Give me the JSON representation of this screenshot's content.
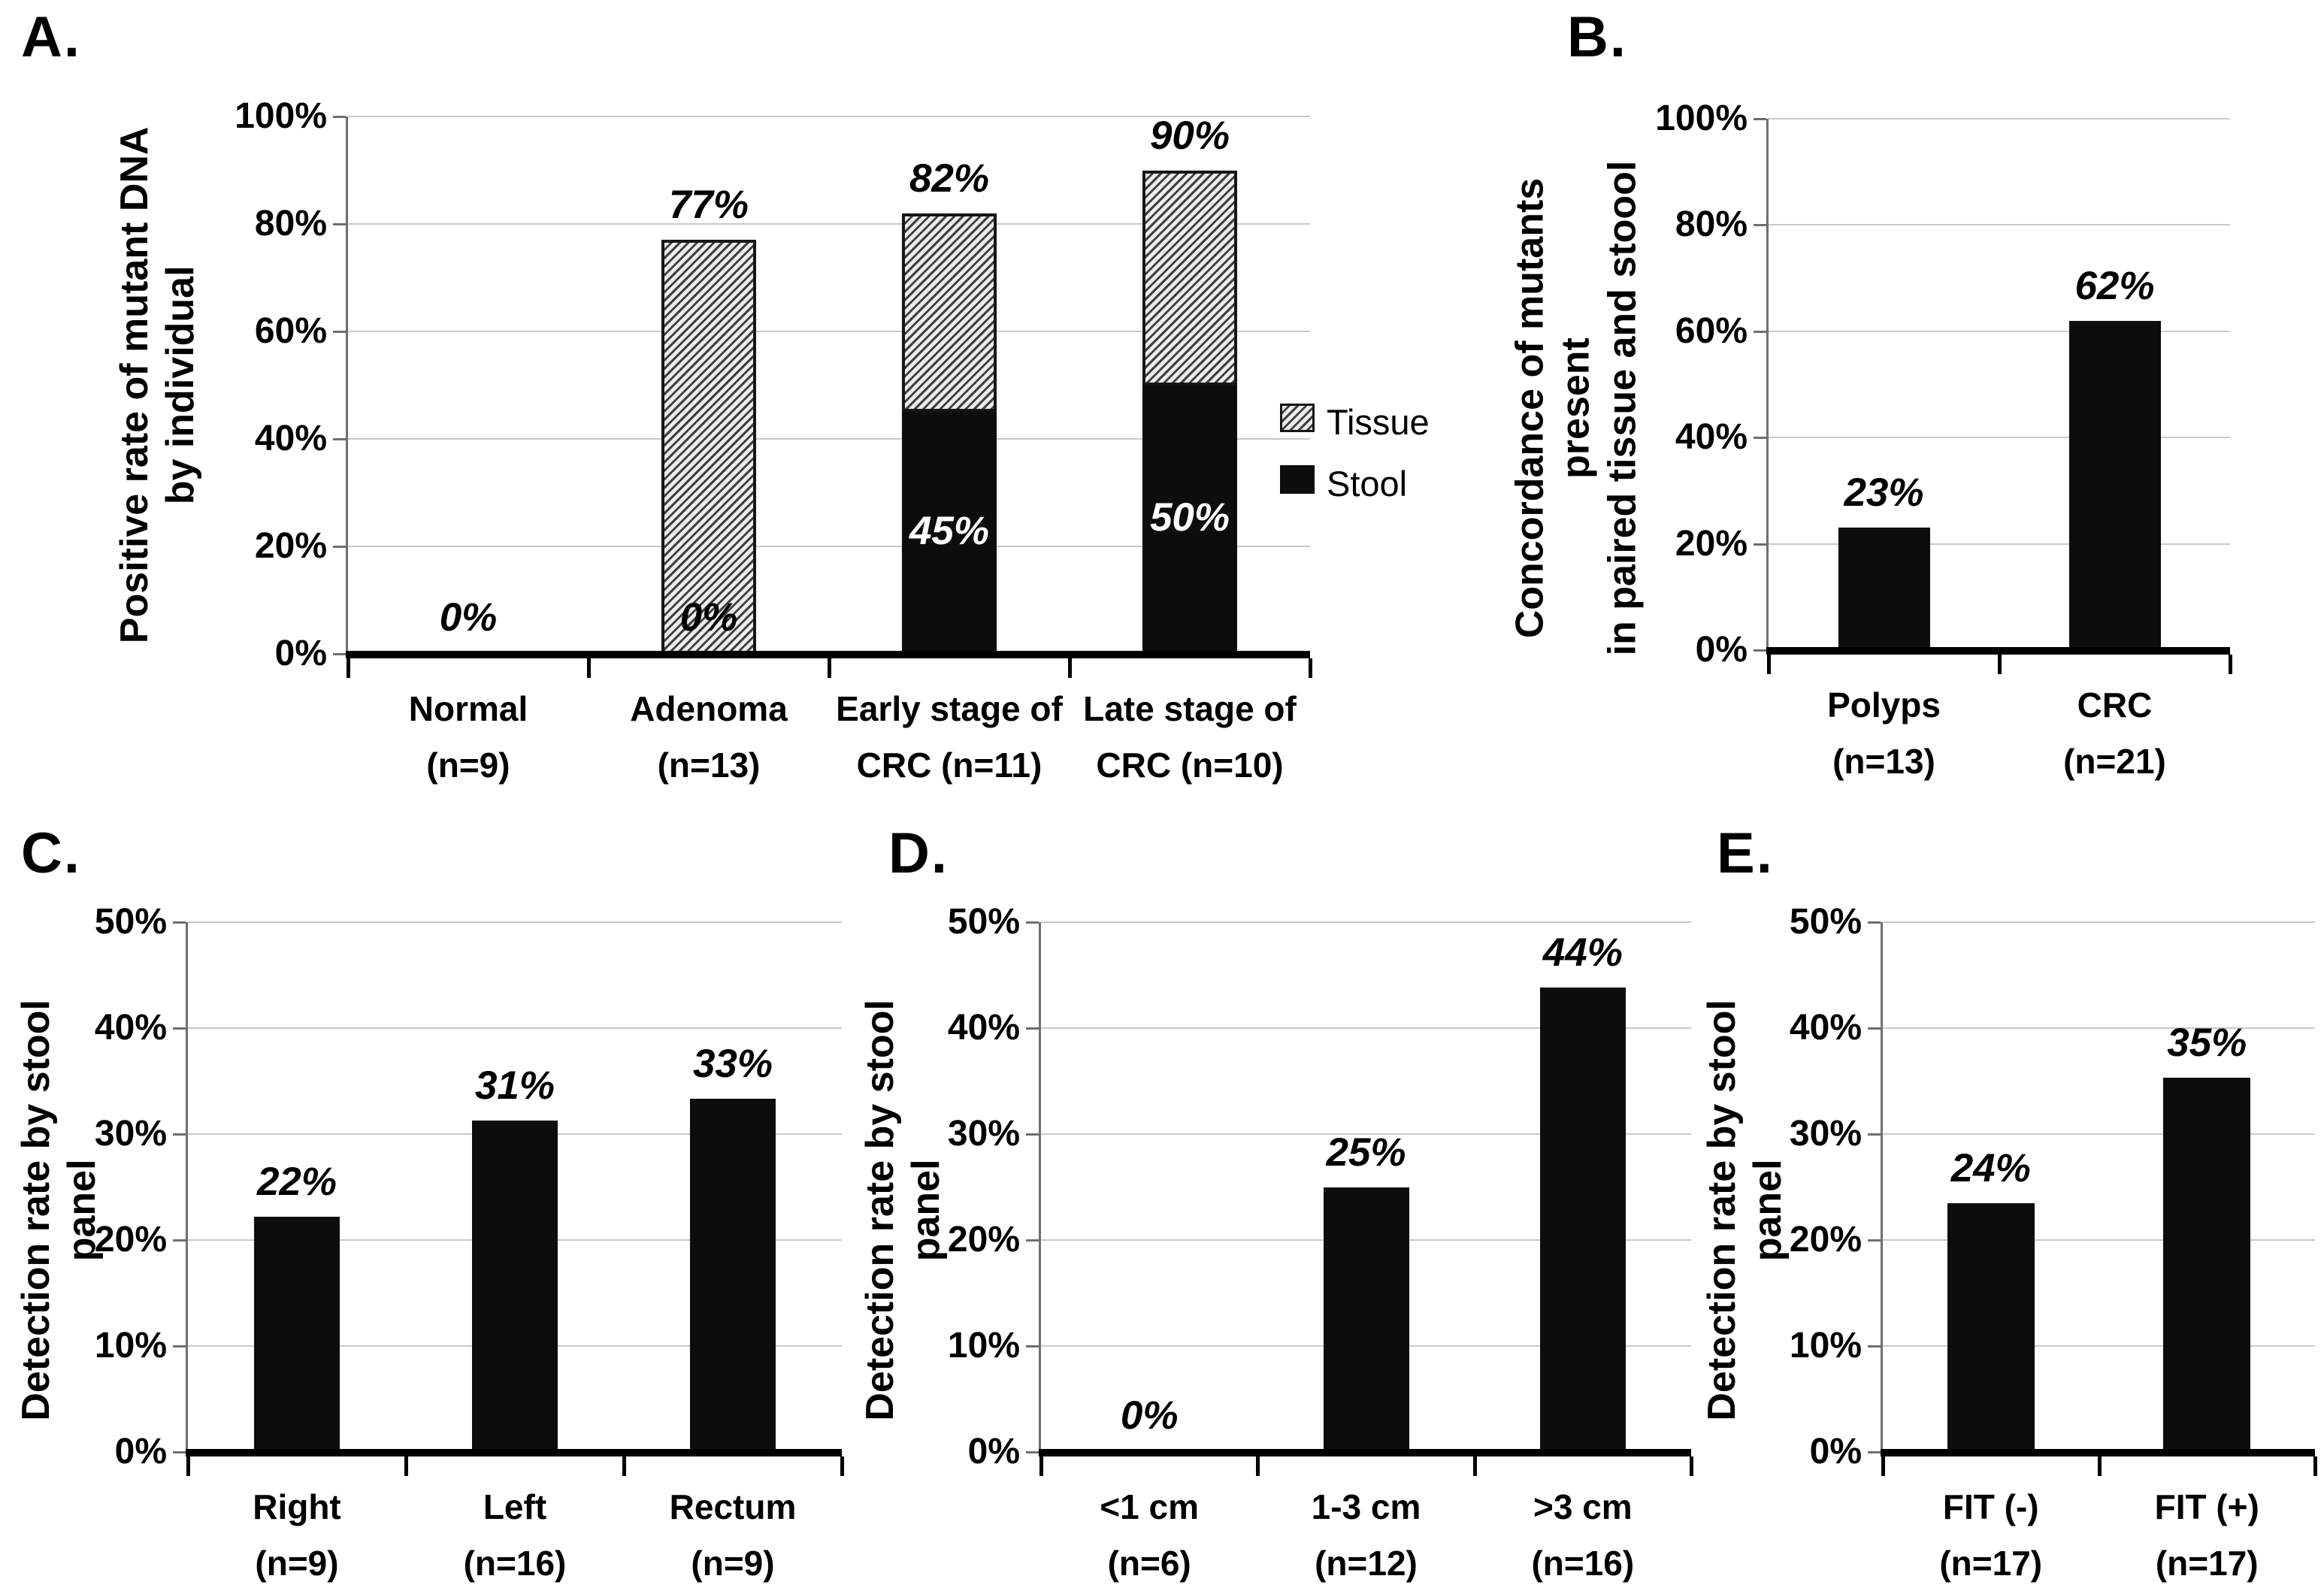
{
  "figure": {
    "background": "#ffffff",
    "panel_order": [
      "A",
      "B",
      "C",
      "D",
      "E"
    ]
  },
  "colors": {
    "bar": "#0d0d0d",
    "gridline": "#c9c9c9",
    "y_axis": "#6f6f6f",
    "x_axis": "#000000",
    "hatch_line": "#3f3f3f",
    "hatch_bg": "#ececec",
    "label_on_bar": "#ffffff",
    "text": "#000000"
  },
  "chart_data": {
    "A": {
      "letter": "A.",
      "type": "stacked-bar",
      "title": "",
      "ylabel": "Positive rate of mutant DNA\nby individual",
      "ylim": [
        0,
        100
      ],
      "ytick_step": 20,
      "ytick_labels": [
        "0%",
        "20%",
        "40%",
        "60%",
        "80%",
        "100%"
      ],
      "grid": true,
      "categories": [
        "Normal\n(n=9)",
        "Adenoma\n(n=13)",
        "Early stage of\nCRC (n=11)",
        "Late stage of\nCRC (n=10)"
      ],
      "series": [
        {
          "name": "Stool",
          "style": "solid",
          "values": [
            0,
            0,
            45,
            50
          ]
        },
        {
          "name": "Tissue",
          "style": "hatch",
          "values": [
            0,
            77,
            37,
            40
          ]
        }
      ],
      "stacked_totals": [
        0,
        77,
        82,
        90
      ],
      "total_labels": [
        "0%",
        "77%",
        "82%",
        "90%"
      ],
      "segment_labels": {
        "series": "Stool",
        "labels": [
          "",
          "0%",
          "45%",
          "50%"
        ]
      },
      "legend": {
        "position": "right",
        "entries": [
          {
            "label": "Tissue",
            "style": "hatch"
          },
          {
            "label": "Stool",
            "style": "solid"
          }
        ]
      }
    },
    "B": {
      "letter": "B.",
      "type": "bar",
      "title": "",
      "ylabel": "Concordance of mutants present\nin paired tissue and stoool",
      "ylim": [
        0,
        100
      ],
      "ytick_step": 20,
      "ytick_labels": [
        "0%",
        "20%",
        "40%",
        "60%",
        "80%",
        "100%"
      ],
      "grid": true,
      "categories": [
        "Polyps\n(n=13)",
        "CRC\n(n=21)"
      ],
      "values": [
        23.1,
        61.9
      ],
      "value_labels": [
        "23%",
        "62%"
      ]
    },
    "C": {
      "letter": "C.",
      "type": "bar",
      "title": "",
      "ylabel": "Detection rate by stool panel",
      "ylim": [
        0,
        50
      ],
      "ytick_step": 10,
      "ytick_labels": [
        "0%",
        "10%",
        "20%",
        "30%",
        "40%",
        "50%"
      ],
      "grid": true,
      "categories": [
        "Right\n(n=9)",
        "Left\n(n=16)",
        "Rectum\n(n=9)"
      ],
      "values": [
        22.2,
        31.3,
        33.3
      ],
      "value_labels": [
        "22%",
        "31%",
        "33%"
      ]
    },
    "D": {
      "letter": "D.",
      "type": "bar",
      "title": "",
      "ylabel": "Detection rate by stool panel",
      "ylim": [
        0,
        50
      ],
      "ytick_step": 10,
      "ytick_labels": [
        "0%",
        "10%",
        "20%",
        "30%",
        "40%",
        "50%"
      ],
      "grid": true,
      "categories": [
        "<1 cm\n(n=6)",
        "1-3 cm\n(n=12)",
        ">3 cm\n(n=16)"
      ],
      "values": [
        0,
        25,
        43.8
      ],
      "value_labels": [
        "0%",
        "25%",
        "44%"
      ]
    },
    "E": {
      "letter": "E.",
      "type": "bar",
      "title": "",
      "ylabel": "Detection rate by stool panel",
      "ylim": [
        0,
        50
      ],
      "ytick_step": 10,
      "ytick_labels": [
        "0%",
        "10%",
        "20%",
        "30%",
        "40%",
        "50%"
      ],
      "grid": true,
      "categories": [
        "FIT (-)\n(n=17)",
        "FIT (+)\n(n=17)"
      ],
      "values": [
        23.5,
        35.3
      ],
      "value_labels": [
        "24%",
        "35%"
      ]
    }
  }
}
